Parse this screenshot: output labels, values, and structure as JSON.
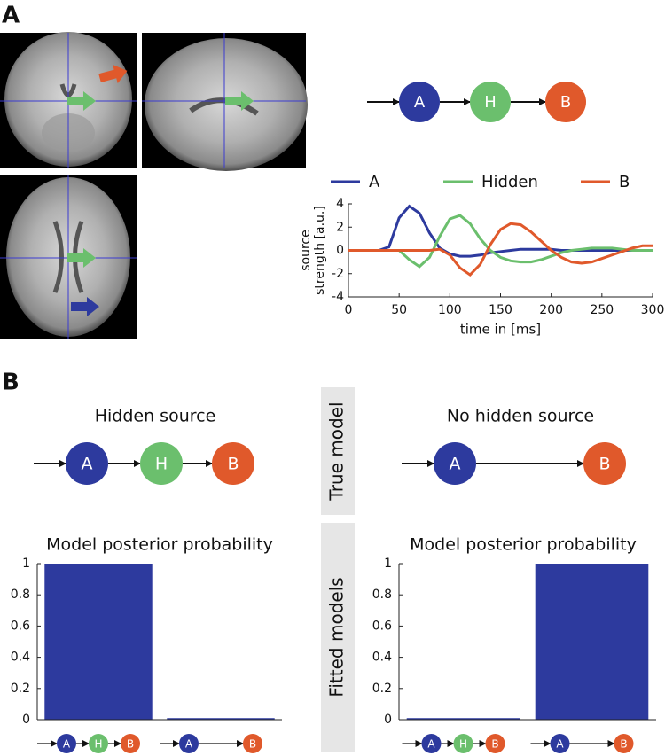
{
  "panel_labels": [
    "A",
    "B"
  ],
  "node_colors": {
    "A": "#2d3a9e",
    "H": "#6bbf6d",
    "B": "#e0592b"
  },
  "top_diagram": {
    "nodes": [
      "A",
      "H",
      "B"
    ]
  },
  "true_model_label": "True model",
  "fitted_models_label": "Fitted models",
  "models": [
    {
      "title": "Hidden source",
      "nodes": [
        "A",
        "H",
        "B"
      ]
    },
    {
      "title": "No hidden source",
      "nodes": [
        "A",
        "B"
      ]
    }
  ],
  "chart_data": [
    {
      "type": "line",
      "xlabel": "time in [ms]",
      "ylabel": [
        "source",
        "strength [a.u.]"
      ],
      "x": [
        0,
        10,
        20,
        30,
        40,
        50,
        60,
        70,
        80,
        90,
        100,
        110,
        120,
        130,
        140,
        150,
        160,
        170,
        180,
        190,
        200,
        210,
        220,
        230,
        240,
        250,
        260,
        270,
        280,
        290,
        300
      ],
      "series": [
        {
          "name": "A",
          "color": "#2d3a9e",
          "values": [
            0,
            0,
            0,
            0,
            0.3,
            2.8,
            3.8,
            3.2,
            1.5,
            0.2,
            -0.3,
            -0.5,
            -0.5,
            -0.4,
            -0.2,
            -0.1,
            0,
            0.1,
            0.1,
            0.1,
            0.1,
            0,
            0,
            0,
            0,
            0,
            0,
            0,
            0,
            0,
            0
          ]
        },
        {
          "name": "Hidden",
          "color": "#6bbf6d",
          "values": [
            0,
            0,
            0,
            0,
            0,
            0,
            -0.8,
            -1.4,
            -0.6,
            1.2,
            2.7,
            3.0,
            2.3,
            1.0,
            0,
            -0.6,
            -0.9,
            -1.0,
            -1.0,
            -0.8,
            -0.5,
            -0.2,
            0,
            0.1,
            0.2,
            0.2,
            0.2,
            0.1,
            0,
            0,
            0
          ]
        },
        {
          "name": "B",
          "color": "#e0592b",
          "values": [
            0,
            0,
            0,
            0,
            0,
            0,
            0,
            0,
            0,
            0.1,
            -0.4,
            -1.5,
            -2.1,
            -1.2,
            0.5,
            1.8,
            2.3,
            2.2,
            1.6,
            0.8,
            0,
            -0.6,
            -1.0,
            -1.1,
            -1.0,
            -0.7,
            -0.4,
            -0.1,
            0.2,
            0.4,
            0.4
          ]
        }
      ],
      "xlim": [
        0,
        300
      ],
      "xticks": [
        0,
        50,
        100,
        150,
        200,
        250,
        300
      ],
      "ylim": [
        -4,
        4
      ],
      "yticks": [
        -4,
        -2,
        0,
        2,
        4
      ]
    },
    {
      "type": "bar",
      "title": "Model posterior probability",
      "categories": [
        [
          "A",
          "H",
          "B"
        ],
        [
          "A",
          "B"
        ]
      ],
      "values": [
        1,
        0.01
      ],
      "color": "#2d3a9e",
      "ylim": [
        0,
        1
      ],
      "yticks": [
        0,
        0.2,
        0.4,
        0.6,
        0.8,
        1
      ]
    },
    {
      "type": "bar",
      "title": "Model posterior probability",
      "categories": [
        [
          "A",
          "H",
          "B"
        ],
        [
          "A",
          "B"
        ]
      ],
      "values": [
        0.01,
        1
      ],
      "color": "#2d3a9e",
      "ylim": [
        0,
        1
      ],
      "yticks": [
        0,
        0.2,
        0.4,
        0.6,
        0.8,
        1
      ]
    }
  ]
}
